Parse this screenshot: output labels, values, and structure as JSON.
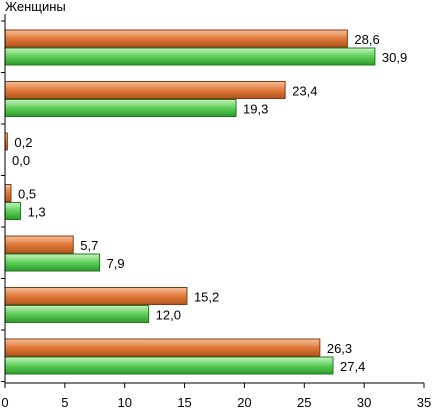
{
  "chart_data": {
    "type": "bar",
    "orientation": "horizontal",
    "title": "Женщины",
    "xlabel": "",
    "ylabel": "",
    "xlim": [
      0,
      35
    ],
    "x_ticks": [
      "0",
      "5",
      "10",
      "15",
      "20",
      "25",
      "30",
      "35"
    ],
    "x_tick_values": [
      0,
      5,
      10,
      15,
      20,
      25,
      30,
      35
    ],
    "grid": false,
    "legend": "none",
    "groups": [
      {
        "bars": [
          {
            "value": 28.6,
            "label": "28,6"
          },
          {
            "value": 30.9,
            "label": "30,9"
          }
        ]
      },
      {
        "bars": [
          {
            "value": 23.4,
            "label": "23,4"
          },
          {
            "value": 19.3,
            "label": "19,3"
          }
        ]
      },
      {
        "bars": [
          {
            "value": 0.2,
            "label": "0,2"
          },
          {
            "value": 0.0,
            "label": "0,0"
          }
        ]
      },
      {
        "bars": [
          {
            "value": 0.5,
            "label": "0,5"
          },
          {
            "value": 1.3,
            "label": "1,3"
          }
        ]
      },
      {
        "bars": [
          {
            "value": 5.7,
            "label": "5,7"
          },
          {
            "value": 7.9,
            "label": "7,9"
          }
        ]
      },
      {
        "bars": [
          {
            "value": 15.2,
            "label": "15,2"
          },
          {
            "value": 12.0,
            "label": "12,0"
          }
        ]
      },
      {
        "bars": [
          {
            "value": 26.3,
            "label": "26,3"
          },
          {
            "value": 27.4,
            "label": "27,4"
          }
        ]
      }
    ],
    "series_colors": [
      "#e07a3a",
      "#4cc24a"
    ]
  }
}
